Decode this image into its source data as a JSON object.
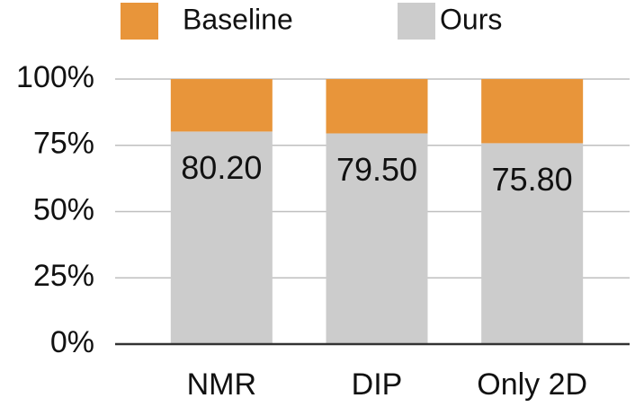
{
  "chart_data": {
    "type": "stacked_bar",
    "categories": [
      "NMR",
      "DIP",
      "Only 2D"
    ],
    "series": [
      {
        "name": "Baseline",
        "color": "#e8953a",
        "values": [
          19.8,
          20.5,
          24.2
        ]
      },
      {
        "name": "Ours",
        "color": "#cccccc",
        "values": [
          80.2,
          79.5,
          75.8
        ],
        "value_labels": [
          "80.20",
          "79.50",
          "75.80"
        ]
      }
    ],
    "ylim": [
      0,
      100
    ],
    "yticks": [
      {
        "value": 0,
        "label": "0%"
      },
      {
        "value": 25,
        "label": "25%"
      },
      {
        "value": 50,
        "label": "50%"
      },
      {
        "value": 75,
        "label": "75%"
      },
      {
        "value": 100,
        "label": "100%"
      }
    ],
    "grid": true
  }
}
